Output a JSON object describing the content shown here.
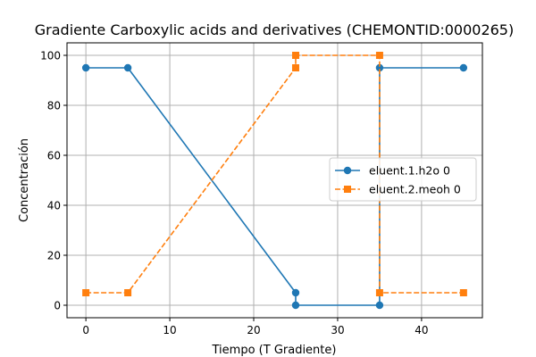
{
  "chart_data": {
    "type": "line",
    "title": "Gradiente Carboxylic acids and derivatives (CHEMONTID:0000265)",
    "xlabel": "Tiempo (T Gradiente)",
    "ylabel": "Concentración",
    "xlim": [
      -2.25,
      47.25
    ],
    "ylim": [
      -5,
      105
    ],
    "xticks": [
      0,
      10,
      20,
      30,
      40
    ],
    "yticks": [
      0,
      20,
      40,
      60,
      80,
      100
    ],
    "grid": true,
    "legend_position": "center-right",
    "series": [
      {
        "name": "eluent.1.h2o 0",
        "color": "#1f77b4",
        "marker": "circle",
        "linestyle": "solid",
        "x": [
          0,
          5,
          25,
          25,
          35,
          35,
          45
        ],
        "y": [
          95,
          95,
          5,
          0,
          0,
          95,
          95
        ]
      },
      {
        "name": "eluent.2.meoh 0",
        "color": "#ff7f0e",
        "marker": "square",
        "linestyle": "dashed",
        "x": [
          0,
          5,
          25,
          25,
          35,
          35,
          45
        ],
        "y": [
          5,
          5,
          95,
          100,
          100,
          5,
          5
        ]
      }
    ]
  }
}
